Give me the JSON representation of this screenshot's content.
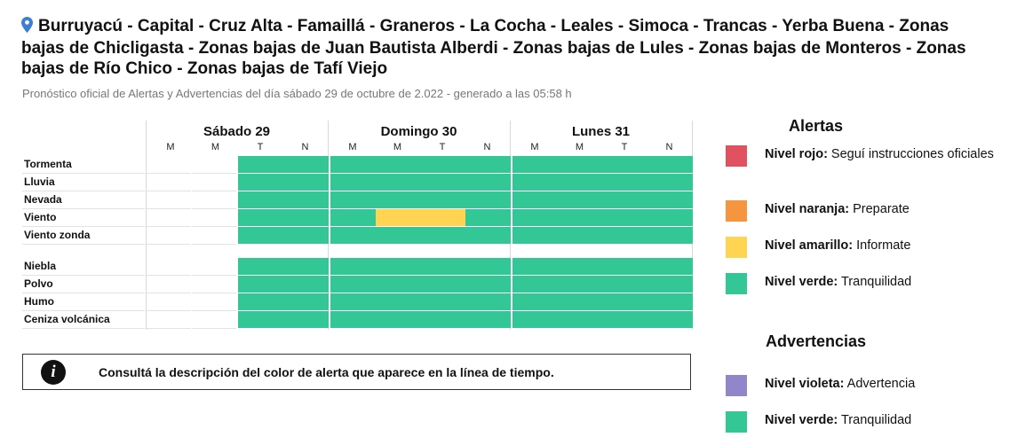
{
  "header": {
    "title": "Burruyacú - Capital - Cruz Alta - Famaillá - Graneros - La Cocha - Leales - Simoca - Trancas - Yerba Buena - Zonas bajas de Chicligasta - Zonas bajas de Juan Bautista Alberdi - Zonas bajas de Lules - Zonas bajas de Monteros - Zonas bajas de Río Chico - Zonas bajas de Tafí Viejo",
    "subtitle": "Pronóstico oficial de Alertas y Advertencias del día sábado 29 de octubre de 2.022 - generado a las 05:58 h"
  },
  "colors": {
    "verde": "#34c796",
    "amarillo": "#ffd452",
    "naranja": "#f6953f",
    "rojo": "#e0525f",
    "violeta": "#8f87c9",
    "empty": "#ffffff"
  },
  "timeline": {
    "days": [
      {
        "label": "Sábado 29",
        "slots": [
          "M",
          "M",
          "T",
          "N"
        ]
      },
      {
        "label": "Domingo 30",
        "slots": [
          "M",
          "M",
          "T",
          "N"
        ]
      },
      {
        "label": "Lunes 31",
        "slots": [
          "M",
          "M",
          "T",
          "N"
        ]
      }
    ],
    "rows": [
      {
        "label": "Tormenta",
        "levels": [
          "",
          "",
          "verde",
          "verde",
          "verde",
          "verde",
          "verde",
          "verde",
          "verde",
          "verde",
          "verde",
          "verde"
        ]
      },
      {
        "label": "Lluvia",
        "levels": [
          "",
          "",
          "verde",
          "verde",
          "verde",
          "verde",
          "verde",
          "verde",
          "verde",
          "verde",
          "verde",
          "verde"
        ]
      },
      {
        "label": "Nevada",
        "levels": [
          "",
          "",
          "verde",
          "verde",
          "verde",
          "verde",
          "verde",
          "verde",
          "verde",
          "verde",
          "verde",
          "verde"
        ]
      },
      {
        "label": "Viento",
        "levels": [
          "",
          "",
          "verde",
          "verde",
          "verde",
          "amarillo",
          "amarillo",
          "verde",
          "verde",
          "verde",
          "verde",
          "verde"
        ]
      },
      {
        "label": "Viento zonda",
        "levels": [
          "",
          "",
          "verde",
          "verde",
          "verde",
          "verde",
          "verde",
          "verde",
          "verde",
          "verde",
          "verde",
          "verde"
        ]
      },
      {
        "label": "Niebla",
        "levels": [
          "",
          "",
          "verde",
          "verde",
          "verde",
          "verde",
          "verde",
          "verde",
          "verde",
          "verde",
          "verde",
          "verde"
        ]
      },
      {
        "label": "Polvo",
        "levels": [
          "",
          "",
          "verde",
          "verde",
          "verde",
          "verde",
          "verde",
          "verde",
          "verde",
          "verde",
          "verde",
          "verde"
        ]
      },
      {
        "label": "Humo",
        "levels": [
          "",
          "",
          "verde",
          "verde",
          "verde",
          "verde",
          "verde",
          "verde",
          "verde",
          "verde",
          "verde",
          "verde"
        ]
      },
      {
        "label": "Ceniza volcánica",
        "levels": [
          "",
          "",
          "verde",
          "verde",
          "verde",
          "verde",
          "verde",
          "verde",
          "verde",
          "verde",
          "verde",
          "verde"
        ]
      }
    ]
  },
  "notice": {
    "icon": "info-icon",
    "text": "Consultá la descripción del color de alerta que aparece en la línea de tiempo."
  },
  "legend": {
    "alertas_title": "Alertas",
    "alertas": [
      {
        "level": "Nivel rojo:",
        "desc": "Seguí instrucciones oficiales",
        "color": "#e0525f"
      },
      {
        "level": "Nivel naranja:",
        "desc": "Preparate",
        "color": "#f6953f"
      },
      {
        "level": "Nivel amarillo:",
        "desc": "Informate",
        "color": "#ffd452"
      },
      {
        "level": "Nivel verde:",
        "desc": "Tranquilidad",
        "color": "#34c796"
      }
    ],
    "advertencias_title": "Advertencias",
    "advertencias": [
      {
        "level": "Nivel violeta:",
        "desc": "Advertencia",
        "color": "#8f87c9"
      },
      {
        "level": "Nivel verde:",
        "desc": "Tranquilidad",
        "color": "#34c796"
      }
    ]
  }
}
